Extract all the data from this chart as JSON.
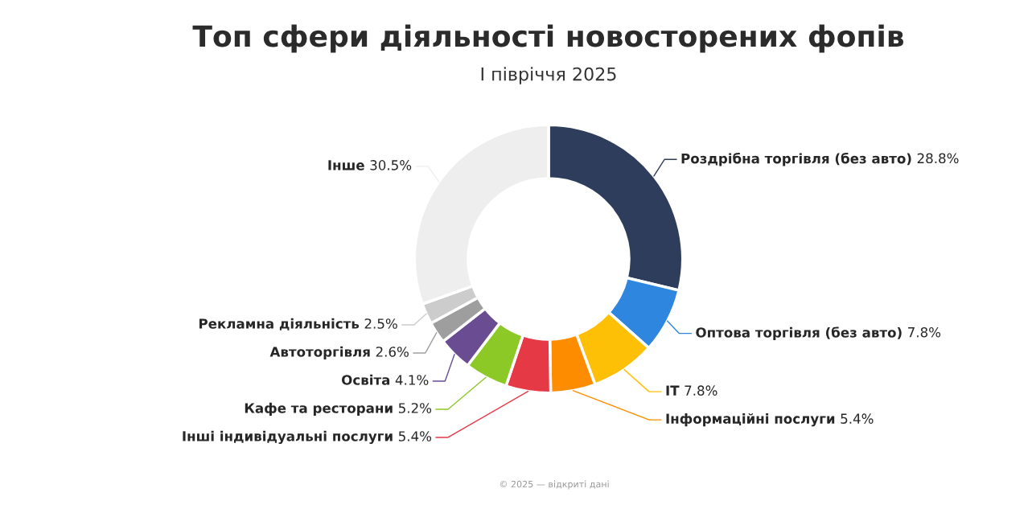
{
  "chart_data": {
    "type": "donut",
    "title": "Топ сфери діяльності новосторених фопів",
    "subtitle": "І півріччя 2025",
    "categories": [
      "Роздрібна торгівля (без авто)",
      "Оптова торгівля (без авто)",
      "IT",
      "Інформаційні послуги",
      "Інші індивідуальні послуги",
      "Кафе та ресторани",
      "Освіта",
      "Автоторгівля",
      "Рекламна діяльність",
      "Інше"
    ],
    "values": [
      28.8,
      7.8,
      7.8,
      5.4,
      5.4,
      5.2,
      4.1,
      2.6,
      2.5,
      30.5
    ],
    "value_labels": [
      "28.8%",
      "7.8%",
      "7.8%",
      "5.4%",
      "5.4%",
      "5.2%",
      "4.1%",
      "2.6%",
      "2.5%",
      "30.5%"
    ],
    "colors": [
      "#2e3d5c",
      "#2e86de",
      "#fec007",
      "#fe8c00",
      "#e63946",
      "#8dc926",
      "#6a4c93",
      "#9e9e9e",
      "#cccccc",
      "#eeeeee"
    ],
    "annotations": [
      "© 2025 — відкриті дані"
    ]
  }
}
